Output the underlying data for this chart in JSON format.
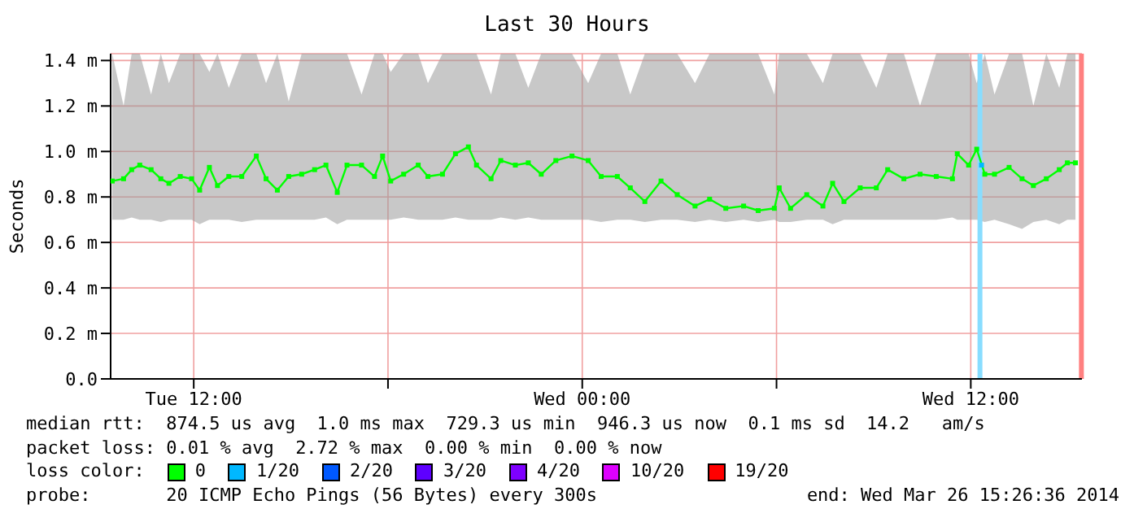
{
  "chart_data": {
    "type": "line",
    "title": "Last 30 Hours",
    "ylabel": "Seconds",
    "legend_title": "loss color:",
    "xlim": [
      "2014-03-25T09:26",
      "2014-03-26T15:26"
    ],
    "xticks": [
      {
        "value": "2014-03-25T12:00",
        "label": "Tue 12:00"
      },
      {
        "value": "2014-03-25T18:00",
        "label": null
      },
      {
        "value": "2014-03-26T00:00",
        "label": "Wed 00:00"
      },
      {
        "value": "2014-03-26T06:00",
        "label": null
      },
      {
        "value": "2014-03-26T12:00",
        "label": "Wed 12:00"
      }
    ],
    "ylim": [
      0,
      1.43
    ],
    "yticks": [
      {
        "value": 0,
        "label": "0.0"
      },
      {
        "value": 0.2,
        "label": "0.2 m"
      },
      {
        "value": 0.4,
        "label": "0.4 m"
      },
      {
        "value": 0.6,
        "label": "0.6 m"
      },
      {
        "value": 0.8,
        "label": "0.8 m"
      },
      {
        "value": 1,
        "label": "1.0 m"
      },
      {
        "value": 1.2,
        "label": "1.2 m"
      },
      {
        "value": 1.4,
        "label": "1.4 m"
      }
    ],
    "grid": true,
    "legend": "bottom",
    "marker": "square",
    "series": [
      {
        "name": "0",
        "color": "#00ff00",
        "x": [
          "2014-03-25T09:29",
          "2014-03-25T09:50",
          "2014-03-25T10:05",
          "2014-03-25T10:20",
          "2014-03-25T10:41",
          "2014-03-25T10:59",
          "2014-03-25T11:14",
          "2014-03-25T11:35",
          "2014-03-25T11:56",
          "2014-03-25T12:11",
          "2014-03-25T12:29",
          "2014-03-25T12:44",
          "2014-03-25T13:05",
          "2014-03-25T13:29",
          "2014-03-25T13:56",
          "2014-03-25T14:14",
          "2014-03-25T14:35",
          "2014-03-25T14:56",
          "2014-03-25T15:20",
          "2014-03-25T15:44",
          "2014-03-25T16:05",
          "2014-03-25T16:26",
          "2014-03-25T16:44",
          "2014-03-25T17:11",
          "2014-03-25T17:35",
          "2014-03-25T17:50",
          "2014-03-25T18:05",
          "2014-03-25T18:29",
          "2014-03-25T18:56",
          "2014-03-25T19:14",
          "2014-03-25T19:41",
          "2014-03-25T20:05",
          "2014-03-25T20:29",
          "2014-03-25T20:44",
          "2014-03-25T21:11",
          "2014-03-25T21:29",
          "2014-03-25T21:56",
          "2014-03-25T22:20",
          "2014-03-25T22:44",
          "2014-03-25T23:11",
          "2014-03-25T23:41",
          "2014-03-26T00:11",
          "2014-03-26T00:35",
          "2014-03-26T01:05",
          "2014-03-26T01:29",
          "2014-03-26T01:56",
          "2014-03-26T02:26",
          "2014-03-26T02:56",
          "2014-03-26T03:29",
          "2014-03-26T03:56",
          "2014-03-26T04:26",
          "2014-03-26T04:59",
          "2014-03-26T05:26",
          "2014-03-26T05:56",
          "2014-03-26T06:05",
          "2014-03-26T06:26",
          "2014-03-26T06:56",
          "2014-03-26T07:26",
          "2014-03-26T07:44",
          "2014-03-26T08:05",
          "2014-03-26T08:35",
          "2014-03-26T09:05",
          "2014-03-26T09:26",
          "2014-03-26T09:56",
          "2014-03-26T10:26",
          "2014-03-26T10:56",
          "2014-03-26T11:26",
          "2014-03-26T11:35",
          "2014-03-26T11:56",
          "2014-03-26T12:11",
          "2014-03-26T12:26",
          "2014-03-26T12:44",
          "2014-03-26T13:11",
          "2014-03-26T13:35",
          "2014-03-26T13:56",
          "2014-03-26T14:20",
          "2014-03-26T14:44",
          "2014-03-26T14:59",
          "2014-03-26T15:14"
        ],
        "values": [
          0.87,
          0.88,
          0.92,
          0.94,
          0.92,
          0.88,
          0.86,
          0.89,
          0.88,
          0.83,
          0.93,
          0.85,
          0.89,
          0.89,
          0.98,
          0.88,
          0.83,
          0.89,
          0.9,
          0.92,
          0.94,
          0.82,
          0.94,
          0.94,
          0.89,
          0.98,
          0.87,
          0.9,
          0.94,
          0.89,
          0.9,
          0.99,
          1.02,
          0.94,
          0.88,
          0.96,
          0.94,
          0.95,
          0.9,
          0.96,
          0.98,
          0.96,
          0.89,
          0.89,
          0.84,
          0.78,
          0.87,
          0.81,
          0.76,
          0.79,
          0.75,
          0.76,
          0.74,
          0.75,
          0.84,
          0.75,
          0.81,
          0.76,
          0.86,
          0.78,
          0.84,
          0.84,
          0.92,
          0.88,
          0.9,
          0.89,
          0.88,
          0.99,
          0.94,
          1.01,
          0.9,
          0.9,
          0.93,
          0.88,
          0.85,
          0.88,
          0.92,
          0.95,
          0.95
        ],
        "lower": [
          0.7,
          0.7,
          0.71,
          0.7,
          0.7,
          0.69,
          0.7,
          0.7,
          0.7,
          0.68,
          0.7,
          0.7,
          0.7,
          0.69,
          0.7,
          0.7,
          0.7,
          0.7,
          0.7,
          0.7,
          0.71,
          0.68,
          0.7,
          0.7,
          0.7,
          0.7,
          0.7,
          0.71,
          0.7,
          0.7,
          0.7,
          0.71,
          0.7,
          0.7,
          0.7,
          0.71,
          0.7,
          0.71,
          0.7,
          0.7,
          0.7,
          0.7,
          0.69,
          0.7,
          0.7,
          0.69,
          0.7,
          0.7,
          0.69,
          0.7,
          0.69,
          0.7,
          0.69,
          0.7,
          0.69,
          0.69,
          0.7,
          0.7,
          0.68,
          0.7,
          0.7,
          0.7,
          0.7,
          0.7,
          0.7,
          0.7,
          0.71,
          0.7,
          0.7,
          0.7,
          0.69,
          0.7,
          0.68,
          0.66,
          0.69,
          0.7,
          0.68,
          0.7,
          0.7
        ],
        "upper": [
          1.43,
          1.2,
          1.43,
          1.43,
          1.25,
          1.43,
          1.3,
          1.43,
          1.43,
          1.43,
          1.35,
          1.43,
          1.28,
          1.43,
          1.43,
          1.3,
          1.43,
          1.22,
          1.43,
          1.43,
          1.43,
          1.43,
          1.43,
          1.25,
          1.43,
          1.43,
          1.35,
          1.43,
          1.43,
          1.3,
          1.43,
          1.43,
          1.43,
          1.43,
          1.25,
          1.43,
          1.43,
          1.28,
          1.43,
          1.43,
          1.43,
          1.3,
          1.43,
          1.43,
          1.25,
          1.43,
          1.43,
          1.43,
          1.3,
          1.43,
          1.43,
          1.43,
          1.43,
          1.25,
          1.43,
          1.43,
          1.43,
          1.3,
          1.43,
          1.43,
          1.43,
          1.28,
          1.43,
          1.43,
          1.2,
          1.43,
          1.43,
          1.43,
          1.43,
          1.3,
          1.43,
          1.25,
          1.43,
          1.43,
          1.2,
          1.43,
          1.28,
          1.43,
          1.43
        ]
      },
      {
        "name": "1/20",
        "color": "#00b8ff",
        "x": [
          "2014-03-26T12:20"
        ],
        "values": [
          0.94
        ]
      },
      {
        "name": "2/20",
        "color": "#0059ff"
      },
      {
        "name": "3/20",
        "color": "#5e00ff"
      },
      {
        "name": "4/20",
        "color": "#7e00ff"
      },
      {
        "name": "10/20",
        "color": "#dd00ff"
      },
      {
        "name": "19/20",
        "color": "#ff0000"
      }
    ],
    "ref_lines": [
      {
        "axis": "x",
        "value": "2014-03-26T12:17",
        "color": "#88ddff"
      },
      {
        "axis": "x",
        "value": "2014-03-26T15:25",
        "color": "#ff8080"
      }
    ],
    "annotations": [
      "median rtt:  874.5 us avg  1.0 ms max  729.3 us min  946.3 us now  0.1 ms sd  14.2   am/s",
      "packet loss: 0.01 % avg  2.72 % max  0.00 % min  0.00 % now",
      "probe:       20 ICMP Echo Pings (56 Bytes) every 300s",
      "end: Wed Mar 26 15:26:36 2014"
    ]
  }
}
